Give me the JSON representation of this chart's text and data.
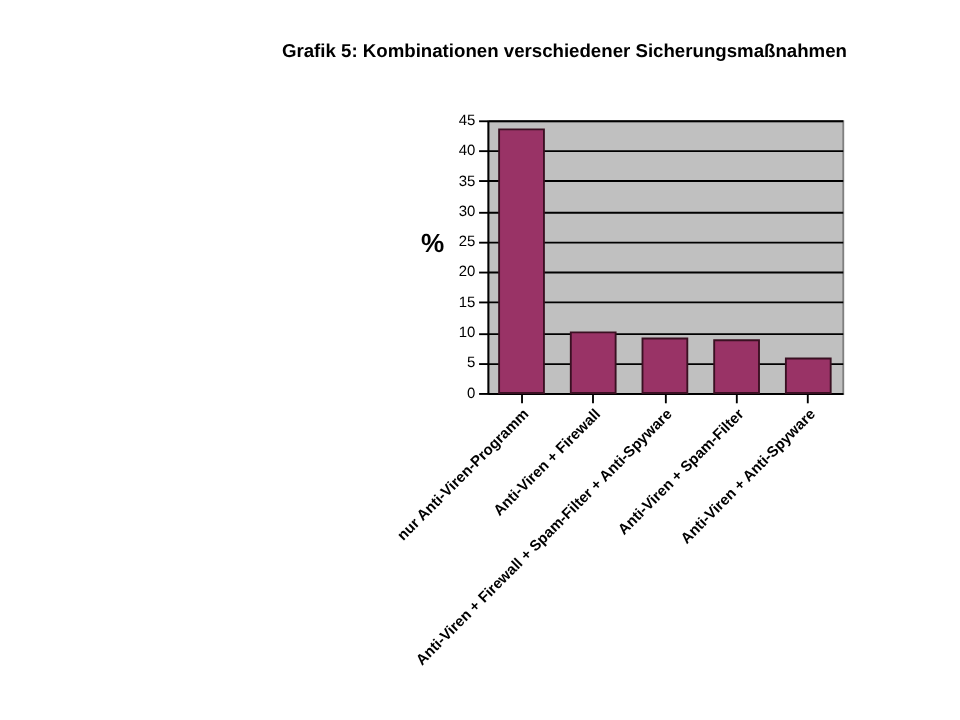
{
  "chart_data": {
    "type": "bar",
    "title": "Grafik 5: Kombinationen verschiedener Sicherungsmaßnahmen",
    "ylabel": "%",
    "categories": [
      "nur Anti-Viren-Programm",
      "Anti-Viren + Firewall",
      "Anti-Viren + Firewall + Spam-Filter + Anti-Spyware",
      "Anti-Viren + Spam-Filter",
      "Anti-Viren + Anti-Spyware"
    ],
    "values": [
      43.5,
      10,
      9,
      8.7,
      5.7
    ],
    "color": "#993366",
    "ylim": [
      0,
      45
    ],
    "yticks": [
      0,
      5,
      10,
      15,
      20,
      25,
      30,
      35,
      40,
      45
    ],
    "grid": "y"
  }
}
